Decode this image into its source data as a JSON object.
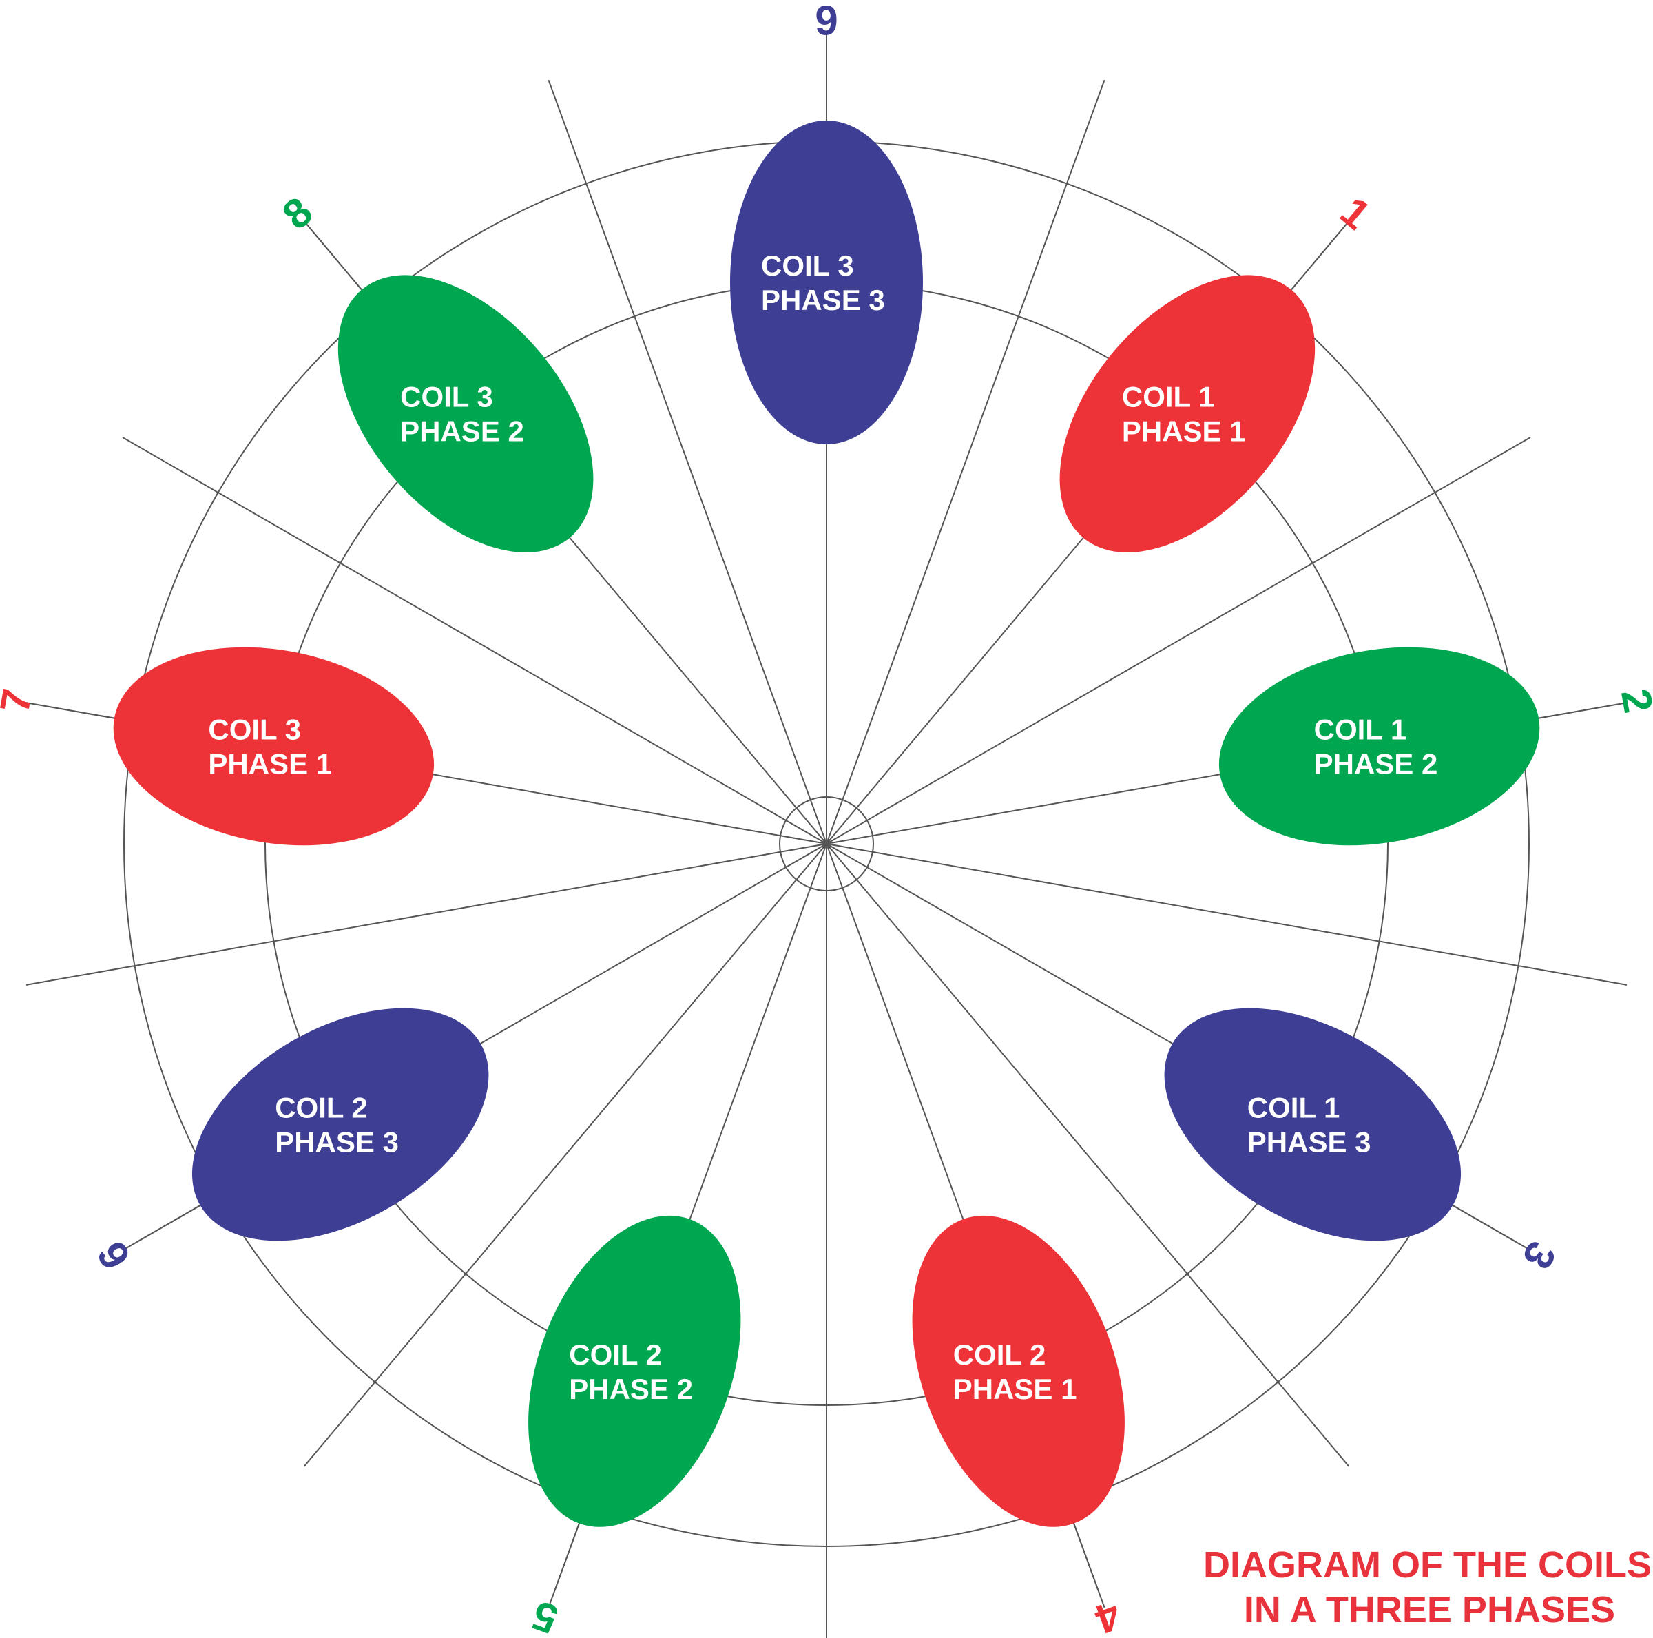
{
  "colors": {
    "phase_1": "#ee3338",
    "phase_2": "#00a650",
    "phase_3": "#3e3f94",
    "grid_line": "#555555"
  },
  "coils": [
    {
      "coil": "COIL 1",
      "phase": "PHASE 1",
      "color": "#ee3338"
    },
    {
      "coil": "COIL 1",
      "phase": "PHASE 2",
      "color": "#00a650"
    },
    {
      "coil": "COIL 1",
      "phase": "PHASE 3",
      "color": "#3e3f94"
    },
    {
      "coil": "COIL 2",
      "phase": "PHASE 1",
      "color": "#ee3338"
    },
    {
      "coil": "COIL 2",
      "phase": "PHASE 2",
      "color": "#00a650"
    },
    {
      "coil": "COIL 2",
      "phase": "PHASE 3",
      "color": "#3e3f94"
    },
    {
      "coil": "COIL 3",
      "phase": "PHASE 1",
      "color": "#ee3338"
    },
    {
      "coil": "COIL 3",
      "phase": "PHASE 2",
      "color": "#00a650"
    },
    {
      "coil": "COIL 3",
      "phase": "PHASE 3",
      "color": "#3e3f94"
    }
  ],
  "numbers": [
    {
      "text": "1",
      "color": "#ee3338"
    },
    {
      "text": "2",
      "color": "#00a650"
    },
    {
      "text": "3",
      "color": "#3e3f94"
    },
    {
      "text": "4",
      "color": "#ee3338"
    },
    {
      "text": "5",
      "color": "#00a650"
    },
    {
      "text": "6",
      "color": "#3e3f94"
    },
    {
      "text": "7",
      "color": "#ee3338"
    },
    {
      "text": "8",
      "color": "#00a650"
    },
    {
      "text": "9",
      "color": "#3e3f94"
    }
  ],
  "caption": {
    "line1": "DIAGRAM OF THE COILS",
    "line2": "IN A THREE PHASES"
  }
}
